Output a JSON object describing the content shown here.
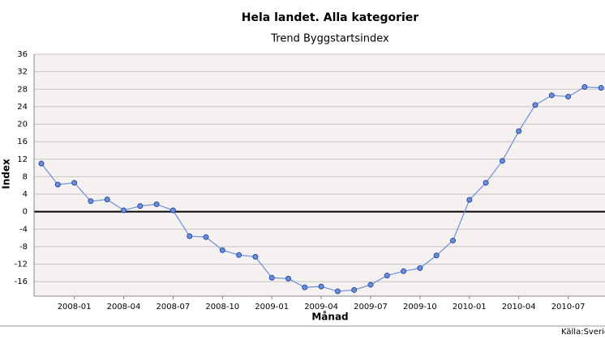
{
  "chart_data": {
    "type": "line",
    "title": "Hela landet. Alla kategorier",
    "subtitle": "Trend Byggstartsindex",
    "y_label": "Index",
    "x_label": "Månad",
    "source": "Källa:Sverig",
    "categories": [
      null,
      null,
      "2008-01",
      null,
      null,
      "2008-04",
      null,
      null,
      "2008-07",
      null,
      null,
      "2008-10",
      null,
      null,
      "2009-01",
      null,
      null,
      "2009-04",
      null,
      null,
      "2009-07",
      null,
      null,
      "2009-10",
      null,
      null,
      "2010-01",
      null,
      null,
      "2010-04",
      null,
      null,
      "2010-07",
      null,
      null
    ],
    "values": [
      11,
      6.2,
      6.6,
      2.4,
      2.8,
      0.3,
      1.3,
      1.7,
      0.3,
      -5.6,
      -5.8,
      -8.8,
      -9.9,
      -10.3,
      -15.1,
      -15.3,
      -17.3,
      -17.1,
      -18.2,
      -17.9,
      -16.7,
      -14.6,
      -13.6,
      -12.9,
      -10,
      -6.6,
      2.7,
      6.6,
      11.6,
      18.4,
      24.4,
      26.6,
      26.3,
      28.5,
      28.3
    ],
    "color": "#6a8fdc",
    "ylim": [
      -19.3,
      36
    ],
    "yticks": [
      -16,
      -12,
      -8,
      -4,
      0,
      4,
      8,
      12,
      16,
      20,
      24,
      28,
      32,
      36
    ],
    "grid": true
  }
}
